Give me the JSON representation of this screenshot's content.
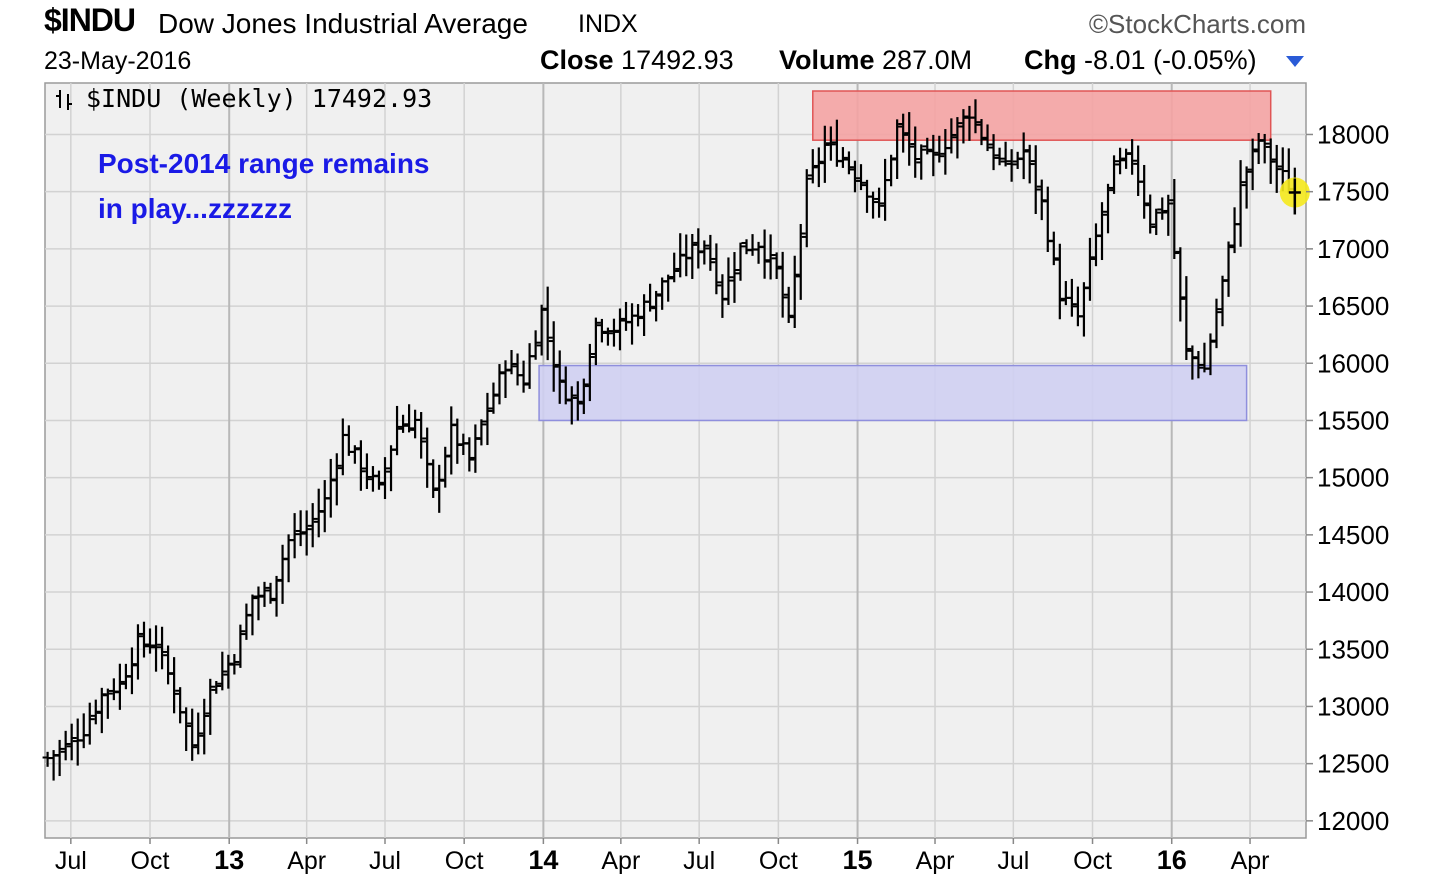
{
  "header": {
    "symbol": "$INDU",
    "name": "Dow Jones Industrial Average",
    "exchange": "INDX",
    "brand": "StockCharts.com",
    "copyright_symbol": "©",
    "date": "23-May-2016",
    "close_label": "Close",
    "close_value": "17492.93",
    "volume_label": "Volume",
    "volume_value": "287.0M",
    "chg_label": "Chg",
    "chg_value": "-8.01 (-0.05%)"
  },
  "chart_data": {
    "type": "ohlc",
    "title": "$INDU (Weekly) 17492.93",
    "legend_icon": "ohlc-bar-icon",
    "annotation": [
      "Post-2014 range remains",
      "in play...zzzzzz"
    ],
    "annotation_color": "#1a1ae6",
    "ylim": [
      11850,
      18450
    ],
    "y_ticks": [
      12000,
      12500,
      13000,
      13500,
      14000,
      14500,
      15000,
      15500,
      16000,
      16500,
      17000,
      17500,
      18000
    ],
    "y_ticks_labels": [
      "12000",
      "12500",
      "13000",
      "13500",
      "14000",
      "14500",
      "15000",
      "15500",
      "16000",
      "16500",
      "17000",
      "17500",
      "18000"
    ],
    "x_range": [
      "2012-06-01",
      "2016-06-05"
    ],
    "x_ticks": [
      {
        "date": "2012-07-01",
        "label": "Jul",
        "bold": false
      },
      {
        "date": "2012-10-01",
        "label": "Oct",
        "bold": false
      },
      {
        "date": "2013-01-01",
        "label": "13",
        "bold": true
      },
      {
        "date": "2013-04-01",
        "label": "Apr",
        "bold": false
      },
      {
        "date": "2013-07-01",
        "label": "Jul",
        "bold": false
      },
      {
        "date": "2013-10-01",
        "label": "Oct",
        "bold": false
      },
      {
        "date": "2014-01-01",
        "label": "14",
        "bold": true
      },
      {
        "date": "2014-04-01",
        "label": "Apr",
        "bold": false
      },
      {
        "date": "2014-07-01",
        "label": "Jul",
        "bold": false
      },
      {
        "date": "2014-10-01",
        "label": "Oct",
        "bold": false
      },
      {
        "date": "2015-01-01",
        "label": "15",
        "bold": true
      },
      {
        "date": "2015-04-01",
        "label": "Apr",
        "bold": false
      },
      {
        "date": "2015-07-01",
        "label": "Jul",
        "bold": false
      },
      {
        "date": "2015-10-01",
        "label": "Oct",
        "bold": false
      },
      {
        "date": "2016-01-01",
        "label": "16",
        "bold": true
      },
      {
        "date": "2016-04-01",
        "label": "Apr",
        "bold": false
      }
    ],
    "resistance_zone": {
      "from": "2014-11-10",
      "to": "2016-04-25",
      "low": 17950,
      "high": 18380,
      "color": "#f4a3a3"
    },
    "support_zone": {
      "from": "2013-12-27",
      "to": "2016-03-28",
      "low": 15500,
      "high": 15980,
      "color": "#cfcff2"
    },
    "last_marker": {
      "date": "2016-05-23",
      "value": 17493,
      "color": "#f5e91c"
    },
    "series": [
      {
        "date": "2012-06-04",
        "close": 12550
      },
      {
        "date": "2012-06-25",
        "close": 12650
      },
      {
        "date": "2012-07-16",
        "close": 12800
      },
      {
        "date": "2012-08-06",
        "close": 13100
      },
      {
        "date": "2012-08-27",
        "close": 13200
      },
      {
        "date": "2012-09-17",
        "close": 13550
      },
      {
        "date": "2012-10-08",
        "close": 13550
      },
      {
        "date": "2012-10-29",
        "close": 13150
      },
      {
        "date": "2012-11-19",
        "close": 12650
      },
      {
        "date": "2012-12-10",
        "close": 13150
      },
      {
        "date": "2013-01-07",
        "close": 13450
      },
      {
        "date": "2013-01-28",
        "close": 13950
      },
      {
        "date": "2013-02-18",
        "close": 14000
      },
      {
        "date": "2013-03-11",
        "close": 14450
      },
      {
        "date": "2013-04-01",
        "close": 14550
      },
      {
        "date": "2013-04-22",
        "close": 14800
      },
      {
        "date": "2013-05-13",
        "close": 15350
      },
      {
        "date": "2013-06-03",
        "close": 15100
      },
      {
        "date": "2013-06-24",
        "close": 14900
      },
      {
        "date": "2013-07-15",
        "close": 15450
      },
      {
        "date": "2013-08-05",
        "close": 15500
      },
      {
        "date": "2013-08-26",
        "close": 14850
      },
      {
        "date": "2013-09-16",
        "close": 15400
      },
      {
        "date": "2013-10-07",
        "close": 15150
      },
      {
        "date": "2013-10-28",
        "close": 15600
      },
      {
        "date": "2013-11-18",
        "close": 16000
      },
      {
        "date": "2013-12-09",
        "close": 15850
      },
      {
        "date": "2013-12-30",
        "close": 16450
      },
      {
        "date": "2014-01-20",
        "close": 15800
      },
      {
        "date": "2014-02-10",
        "close": 15650
      },
      {
        "date": "2014-03-03",
        "close": 16350
      },
      {
        "date": "2014-03-24",
        "close": 16300
      },
      {
        "date": "2014-04-14",
        "close": 16400
      },
      {
        "date": "2014-05-05",
        "close": 16550
      },
      {
        "date": "2014-05-26",
        "close": 16750
      },
      {
        "date": "2014-06-16",
        "close": 16950
      },
      {
        "date": "2014-07-07",
        "close": 17050
      },
      {
        "date": "2014-07-28",
        "close": 16600
      },
      {
        "date": "2014-08-18",
        "close": 17000
      },
      {
        "date": "2014-09-08",
        "close": 17050
      },
      {
        "date": "2014-09-29",
        "close": 16800
      },
      {
        "date": "2014-10-13",
        "close": 16350
      },
      {
        "date": "2014-11-03",
        "close": 17550
      },
      {
        "date": "2014-11-24",
        "close": 17900
      },
      {
        "date": "2014-12-15",
        "close": 17800
      },
      {
        "date": "2015-01-05",
        "close": 17600
      },
      {
        "date": "2015-01-26",
        "close": 17350
      },
      {
        "date": "2015-02-16",
        "close": 18050
      },
      {
        "date": "2015-03-09",
        "close": 17800
      },
      {
        "date": "2015-03-30",
        "close": 17800
      },
      {
        "date": "2015-04-20",
        "close": 18000
      },
      {
        "date": "2015-05-11",
        "close": 18200
      },
      {
        "date": "2015-06-01",
        "close": 17900
      },
      {
        "date": "2015-06-22",
        "close": 17700
      },
      {
        "date": "2015-07-13",
        "close": 17850
      },
      {
        "date": "2015-08-03",
        "close": 17400
      },
      {
        "date": "2015-08-24",
        "close": 16600
      },
      {
        "date": "2015-09-14",
        "close": 16400
      },
      {
        "date": "2015-10-05",
        "close": 17100
      },
      {
        "date": "2015-10-26",
        "close": 17700
      },
      {
        "date": "2015-11-16",
        "close": 17800
      },
      {
        "date": "2015-12-07",
        "close": 17250
      },
      {
        "date": "2015-12-28",
        "close": 17400
      },
      {
        "date": "2016-01-18",
        "close": 16100
      },
      {
        "date": "2016-02-08",
        "close": 15950
      },
      {
        "date": "2016-02-29",
        "close": 16700
      },
      {
        "date": "2016-03-21",
        "close": 17550
      },
      {
        "date": "2016-04-11",
        "close": 17950
      },
      {
        "date": "2016-05-02",
        "close": 17700
      },
      {
        "date": "2016-05-23",
        "close": 17493
      }
    ]
  }
}
